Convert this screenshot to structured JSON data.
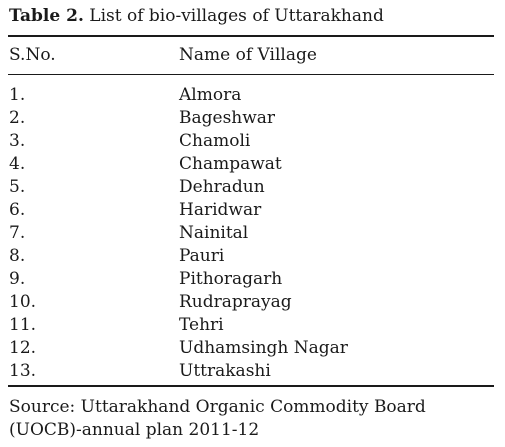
{
  "table": {
    "caption_label": "Table 2.",
    "caption_text": " List of bio-villages of Uttarakhand",
    "headers": {
      "sno": "S.No.",
      "name": "Name of Village"
    },
    "rows": [
      {
        "sno": "1.",
        "name": "Almora"
      },
      {
        "sno": "2.",
        "name": "Bageshwar"
      },
      {
        "sno": "3.",
        "name": "Chamoli"
      },
      {
        "sno": "4.",
        "name": "Champawat"
      },
      {
        "sno": "5.",
        "name": "Dehradun"
      },
      {
        "sno": "6.",
        "name": "Haridwar"
      },
      {
        "sno": "7.",
        "name": "Nainital"
      },
      {
        "sno": "8.",
        "name": "Pauri"
      },
      {
        "sno": "9.",
        "name": "Pithoragarh"
      },
      {
        "sno": "10.",
        "name": "Rudraprayag"
      },
      {
        "sno": "11.",
        "name": "Tehri"
      },
      {
        "sno": "12.",
        "name": "Udhamsingh Nagar"
      },
      {
        "sno": "13.",
        "name": "Uttrakashi"
      }
    ],
    "source": "Source: Uttarakhand Organic Commodity Board (UOCB)-annual plan 2011-12"
  }
}
